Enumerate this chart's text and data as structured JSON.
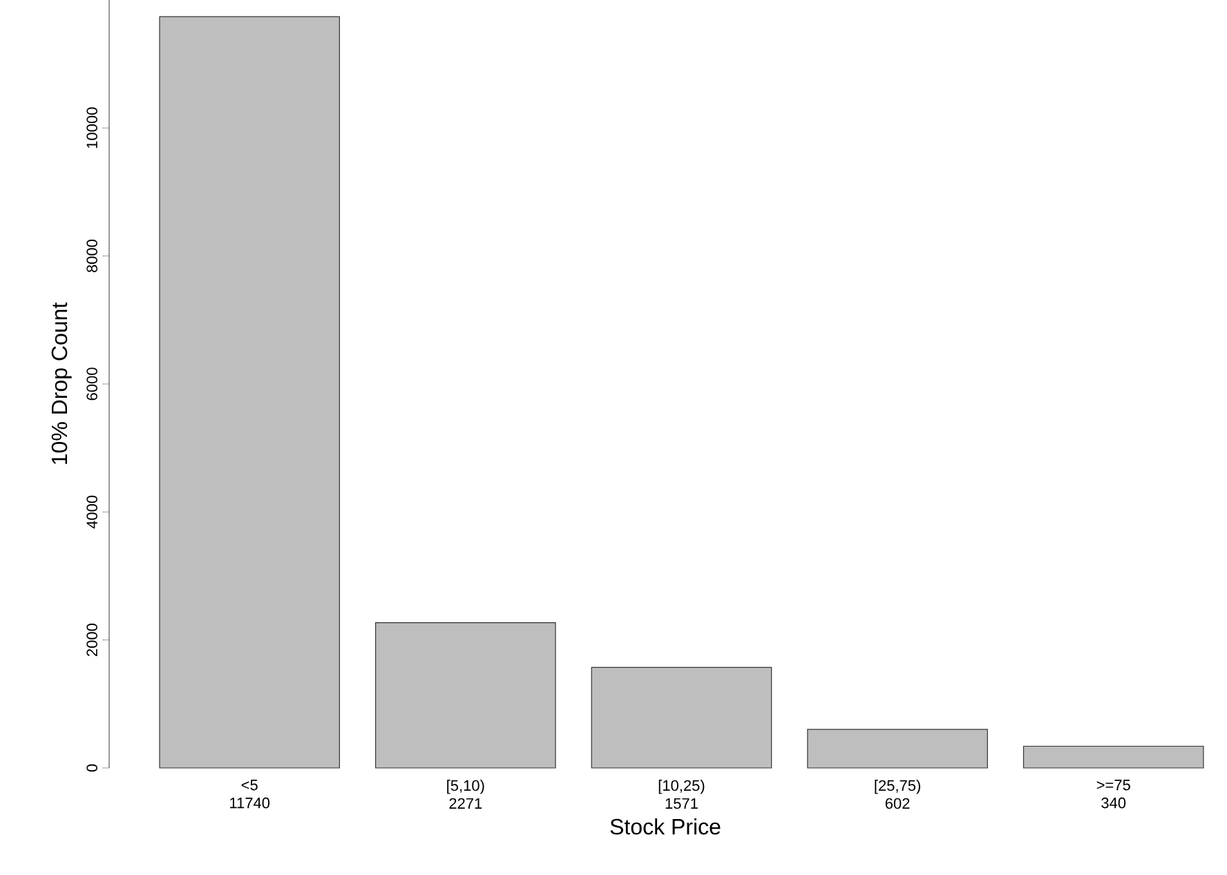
{
  "chart_data": {
    "type": "bar",
    "xlabel": "Stock Price",
    "ylabel": "10% Drop Count",
    "categories": [
      "<5",
      "[5,10)",
      "[10,25)",
      "[25,75)",
      ">=75"
    ],
    "values": [
      11740,
      2271,
      1571,
      602,
      340
    ],
    "color": "#bebebe",
    "data_labels": true,
    "ylim": [
      0,
      12000
    ],
    "yticks": [
      0,
      2000,
      4000,
      6000,
      8000,
      10000
    ]
  }
}
